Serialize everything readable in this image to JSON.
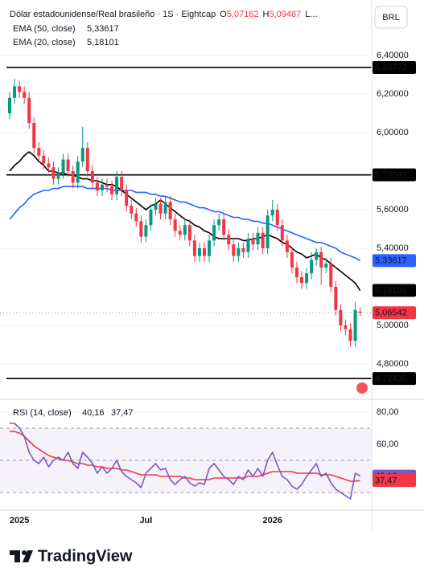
{
  "chart_data": {
    "type": "candlestick",
    "title": "Dólar estadounidense/Real brasileño · 1S · Eightcap",
    "header": {
      "open_key": "O",
      "open": "5,07162",
      "high_key": "H",
      "high": "5,09487",
      "low_key": "L..."
    },
    "currency": "BRL",
    "categories": [
      null,
      null,
      "2025",
      null,
      null,
      null,
      null,
      null,
      null,
      null,
      null,
      null,
      null,
      null,
      null,
      null,
      null,
      null,
      null,
      null,
      null,
      null,
      null,
      null,
      null,
      null,
      null,
      null,
      "Jul",
      null,
      null,
      null,
      null,
      null,
      null,
      null,
      null,
      null,
      null,
      null,
      null,
      null,
      null,
      null,
      null,
      null,
      null,
      null,
      null,
      null,
      null,
      null,
      null,
      null,
      "2026",
      null,
      null,
      null,
      null,
      null,
      null,
      null,
      null,
      null,
      null,
      null,
      null,
      null,
      null,
      null,
      null,
      null,
      null
    ],
    "open": [
      6.1,
      6.18,
      6.24,
      6.21,
      6.18,
      6.05,
      5.92,
      5.88,
      5.84,
      5.82,
      5.76,
      5.79,
      5.86,
      5.8,
      5.74,
      5.85,
      5.92,
      5.8,
      5.74,
      5.7,
      5.73,
      5.72,
      5.68,
      5.77,
      5.7,
      5.62,
      5.58,
      5.54,
      5.46,
      5.52,
      5.6,
      5.63,
      5.58,
      5.64,
      5.55,
      5.49,
      5.47,
      5.52,
      5.44,
      5.36,
      5.4,
      5.36,
      5.44,
      5.52,
      5.55,
      5.47,
      5.42,
      5.36,
      5.4,
      5.38,
      5.45,
      5.42,
      5.48,
      5.4,
      5.57,
      5.6,
      5.52,
      5.44,
      5.38,
      5.3,
      5.25,
      5.22,
      5.27,
      5.34,
      5.38,
      5.3,
      5.32,
      5.2,
      5.08,
      5.0,
      4.98,
      4.92,
      5.07162
    ],
    "high": [
      6.21,
      6.28,
      6.27,
      6.24,
      6.21,
      6.08,
      5.95,
      5.91,
      5.87,
      5.85,
      5.82,
      5.89,
      5.89,
      5.83,
      5.88,
      6.03,
      5.95,
      5.83,
      5.77,
      5.76,
      5.76,
      5.75,
      5.8,
      5.8,
      5.73,
      5.65,
      5.61,
      5.57,
      5.55,
      5.63,
      5.66,
      5.66,
      5.67,
      5.67,
      5.58,
      5.52,
      5.55,
      5.55,
      5.47,
      5.43,
      5.43,
      5.47,
      5.55,
      5.58,
      5.58,
      5.5,
      5.45,
      5.43,
      5.43,
      5.48,
      5.48,
      5.51,
      5.51,
      5.6,
      5.65,
      5.63,
      5.55,
      5.47,
      5.41,
      5.33,
      5.28,
      5.3,
      5.38,
      5.4,
      5.41,
      5.35,
      5.35,
      5.23,
      5.11,
      5.03,
      5.01,
      5.12,
      5.09487
    ],
    "low": [
      6.07,
      6.15,
      6.18,
      6.15,
      6.02,
      5.89,
      5.85,
      5.81,
      5.79,
      5.73,
      5.73,
      5.76,
      5.77,
      5.71,
      5.71,
      5.82,
      5.77,
      5.71,
      5.67,
      5.67,
      5.69,
      5.65,
      5.65,
      5.67,
      5.59,
      5.55,
      5.51,
      5.43,
      5.43,
      5.49,
      5.57,
      5.55,
      5.55,
      5.52,
      5.46,
      5.44,
      5.44,
      5.41,
      5.33,
      5.33,
      5.33,
      5.33,
      5.41,
      5.49,
      5.44,
      5.39,
      5.33,
      5.33,
      5.35,
      5.35,
      5.39,
      5.39,
      5.37,
      5.37,
      5.54,
      5.49,
      5.41,
      5.35,
      5.27,
      5.22,
      5.19,
      5.19,
      5.24,
      5.31,
      5.21,
      5.27,
      5.17,
      5.05,
      4.97,
      4.95,
      4.89,
      4.89,
      5.05
    ],
    "close": [
      6.18,
      6.24,
      6.21,
      6.18,
      6.05,
      5.92,
      5.88,
      5.84,
      5.82,
      5.76,
      5.79,
      5.86,
      5.8,
      5.74,
      5.85,
      5.92,
      5.8,
      5.74,
      5.7,
      5.73,
      5.72,
      5.68,
      5.77,
      5.7,
      5.62,
      5.58,
      5.54,
      5.46,
      5.52,
      5.6,
      5.63,
      5.58,
      5.64,
      5.55,
      5.49,
      5.47,
      5.52,
      5.44,
      5.36,
      5.4,
      5.36,
      5.44,
      5.52,
      5.55,
      5.47,
      5.42,
      5.36,
      5.4,
      5.38,
      5.45,
      5.42,
      5.48,
      5.4,
      5.57,
      5.6,
      5.52,
      5.44,
      5.38,
      5.3,
      5.25,
      5.22,
      5.27,
      5.34,
      5.38,
      5.3,
      5.32,
      5.2,
      5.08,
      5.0,
      4.98,
      4.92,
      5.08,
      5.06542
    ],
    "close_label": "5,06542",
    "up_color": "#089981",
    "down_color": "#f23645",
    "ylim": [
      4.625,
      6.6875
    ],
    "yticks": [
      {
        "value": 6.4,
        "label": "6,40000"
      },
      {
        "value": 6.2,
        "label": "6,20000"
      },
      {
        "value": 6.0,
        "label": "6,00000"
      },
      {
        "value": 5.6,
        "label": "5,60000"
      },
      {
        "value": 5.4,
        "label": "5,40000"
      },
      {
        "value": 5.0,
        "label": "5,00000"
      },
      {
        "value": 4.8,
        "label": "4,80000"
      }
    ],
    "grid": true,
    "overlays": [
      {
        "name": "EMA (50, close)",
        "last_label": "5,33617",
        "color": "#2962ff",
        "values": [
          5.55,
          5.58,
          5.61,
          5.63,
          5.66,
          5.68,
          5.69,
          5.7,
          5.7,
          5.71,
          5.71,
          5.72,
          5.72,
          5.72,
          5.72,
          5.72,
          5.71,
          5.71,
          5.71,
          5.71,
          5.71,
          5.7,
          5.7,
          5.7,
          5.7,
          5.7,
          5.69,
          5.69,
          5.69,
          5.68,
          5.68,
          5.67,
          5.67,
          5.66,
          5.65,
          5.64,
          5.64,
          5.63,
          5.62,
          5.61,
          5.61,
          5.6,
          5.59,
          5.59,
          5.58,
          5.57,
          5.56,
          5.56,
          5.55,
          5.55,
          5.54,
          5.54,
          5.53,
          5.53,
          5.52,
          5.51,
          5.5,
          5.49,
          5.48,
          5.47,
          5.46,
          5.45,
          5.44,
          5.43,
          5.43,
          5.42,
          5.41,
          5.4,
          5.38,
          5.37,
          5.36,
          5.35,
          5.33617
        ]
      },
      {
        "name": "EMA (20, close)",
        "last_label": "5,18101",
        "color": "#000000",
        "values": [
          5.8,
          5.83,
          5.85,
          5.88,
          5.9,
          5.88,
          5.85,
          5.83,
          5.8,
          5.8,
          5.79,
          5.79,
          5.78,
          5.78,
          5.77,
          5.76,
          5.76,
          5.75,
          5.75,
          5.74,
          5.73,
          5.73,
          5.72,
          5.7,
          5.68,
          5.66,
          5.64,
          5.62,
          5.6,
          5.62,
          5.63,
          5.65,
          5.63,
          5.61,
          5.59,
          5.57,
          5.55,
          5.54,
          5.52,
          5.51,
          5.49,
          5.48,
          5.46,
          5.45,
          5.45,
          5.45,
          5.45,
          5.45,
          5.44,
          5.44,
          5.45,
          5.45,
          5.46,
          5.47,
          5.46,
          5.45,
          5.43,
          5.42,
          5.4,
          5.38,
          5.37,
          5.35,
          5.36,
          5.37,
          5.35,
          5.34,
          5.32,
          5.3,
          5.28,
          5.26,
          5.24,
          5.22,
          5.18101
        ]
      }
    ],
    "levels": [
      {
        "value": 6.33772,
        "label": "6,33772"
      },
      {
        "value": 5.78049,
        "label": "5,78049"
      },
      {
        "value": 4.72435,
        "label": "4,72435"
      }
    ],
    "rsi": {
      "name": "RSI (14, close)",
      "color": "#7e57c2",
      "values": [
        73,
        73,
        70,
        65,
        55,
        50,
        48,
        52,
        46,
        50,
        52,
        50,
        55,
        48,
        45,
        55,
        52,
        48,
        42,
        46,
        42,
        45,
        50,
        43,
        40,
        38,
        36,
        33,
        42,
        45,
        48,
        44,
        45,
        38,
        35,
        38,
        40,
        36,
        34,
        36,
        35,
        45,
        48,
        44,
        40,
        38,
        35,
        40,
        38,
        44,
        40,
        45,
        40,
        50,
        55,
        47,
        40,
        38,
        34,
        32,
        35,
        40,
        44,
        48,
        40,
        42,
        36,
        32,
        30,
        28,
        26,
        42,
        40.16
      ],
      "value_label": "40,16",
      "ma_color": "#f23645",
      "ma_values": [
        68,
        68,
        67,
        65,
        62,
        59,
        57,
        55,
        53,
        52,
        51,
        50,
        50,
        49,
        48,
        48,
        47,
        47,
        46,
        46,
        45,
        45,
        45,
        44,
        44,
        43,
        42,
        41,
        41,
        41,
        41,
        40,
        40,
        40,
        40,
        40,
        39,
        39,
        38,
        38,
        38,
        38,
        39,
        39,
        39,
        39,
        39,
        39,
        39,
        40,
        40,
        40,
        41,
        42,
        43,
        43,
        43,
        43,
        43,
        42,
        42,
        42,
        42,
        42,
        41,
        41,
        41,
        40,
        39,
        38,
        37,
        37,
        37.47
      ],
      "ma_label": "37,47",
      "ylim": [
        21.5,
        88
      ],
      "yticks": [
        {
          "value": 80,
          "label": "80,00"
        },
        {
          "value": 60,
          "label": "60,00"
        }
      ],
      "bands": [
        70,
        50,
        30
      ]
    },
    "brand": "TradingView"
  }
}
